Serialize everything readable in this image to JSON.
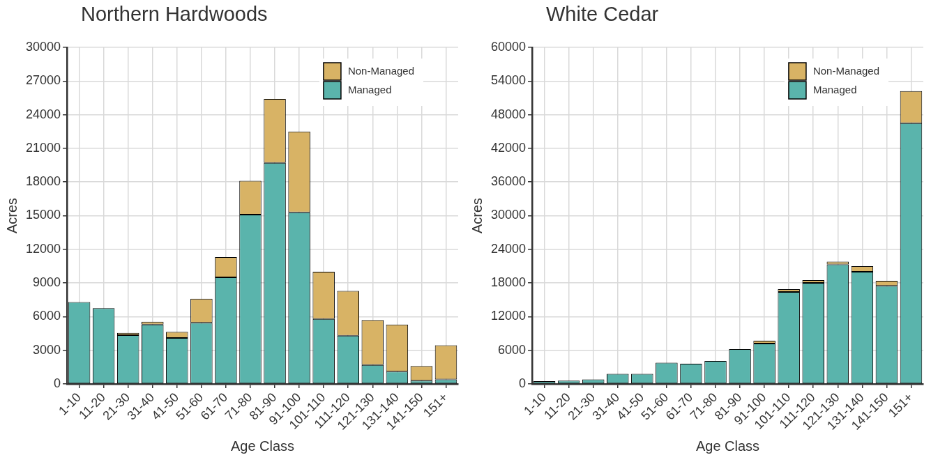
{
  "chart_data": [
    {
      "type": "bar",
      "title": "Northern Hardwoods",
      "xlabel": "Age Class",
      "ylabel": "Acres",
      "stacked": true,
      "grid": true,
      "legend": "top right",
      "categories": [
        "1-10",
        "11-20",
        "21-30",
        "31-40",
        "41-50",
        "51-60",
        "61-70",
        "71-80",
        "81-90",
        "91-100",
        "101-110",
        "111-120",
        "121-130",
        "131-140",
        "141-150",
        "151+"
      ],
      "ylim": [
        0,
        30000
      ],
      "yticks": [
        0,
        3000,
        6000,
        9000,
        12000,
        15000,
        18000,
        21000,
        24000,
        27000,
        30000
      ],
      "series": [
        {
          "name": "Managed",
          "color": "#5ab4ac",
          "values": [
            7300,
            6750,
            4350,
            5300,
            4100,
            5450,
            9500,
            15100,
            19700,
            15300,
            5800,
            4300,
            1700,
            1100,
            300,
            400
          ]
        },
        {
          "name": "Non-Managed",
          "color": "#d8b365",
          "values": [
            0,
            0,
            200,
            250,
            550,
            2150,
            1800,
            3000,
            5700,
            7200,
            4200,
            4000,
            4000,
            4200,
            1300,
            3050
          ]
        }
      ]
    },
    {
      "type": "bar",
      "title": "White Cedar",
      "xlabel": "Age Class",
      "ylabel": "Acres",
      "stacked": true,
      "grid": true,
      "legend": "top right",
      "categories": [
        "1-10",
        "11-20",
        "21-30",
        "31-40",
        "41-50",
        "51-60",
        "61-70",
        "71-80",
        "81-90",
        "91-100",
        "101-110",
        "111-120",
        "121-130",
        "131-140",
        "141-150",
        "151+"
      ],
      "ylim": [
        0,
        60000
      ],
      "yticks": [
        0,
        6000,
        12000,
        18000,
        24000,
        30000,
        36000,
        42000,
        48000,
        54000,
        60000
      ],
      "series": [
        {
          "name": "Managed",
          "color": "#5ab4ac",
          "values": [
            500,
            600,
            800,
            1800,
            1800,
            3800,
            3600,
            4100,
            6200,
            7200,
            16400,
            18000,
            21300,
            20000,
            17500,
            46500
          ]
        },
        {
          "name": "Non-Managed",
          "color": "#d8b365",
          "values": [
            0,
            0,
            0,
            0,
            0,
            0,
            0,
            0,
            0,
            500,
            500,
            500,
            500,
            1000,
            900,
            5700
          ]
        }
      ]
    }
  ]
}
